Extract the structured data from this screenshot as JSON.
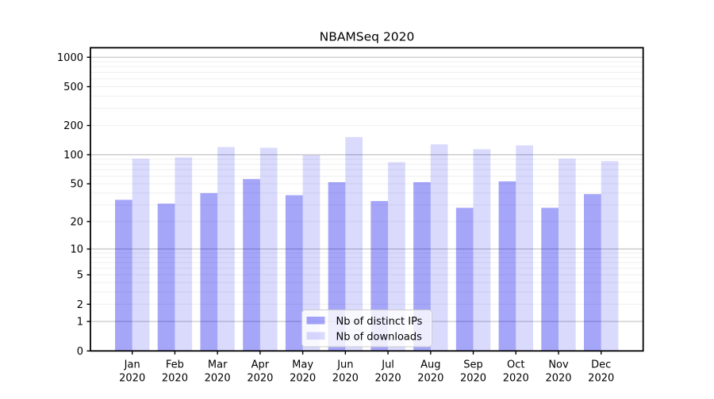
{
  "figure": {
    "background": "#ffffff"
  },
  "chart_data": {
    "type": "bar",
    "title": "NBAMSeq 2020",
    "yscale": "log1p",
    "ylim": [
      0,
      1257
    ],
    "grid": true,
    "categories": [
      "Jan 2020",
      "Feb 2020",
      "Mar 2020",
      "Apr 2020",
      "May 2020",
      "Jun 2020",
      "Jul 2020",
      "Aug 2020",
      "Sep 2020",
      "Oct 2020",
      "Nov 2020",
      "Dec 2020"
    ],
    "x_labels": [
      {
        "line1": "Jan",
        "line2": "2020"
      },
      {
        "line1": "Feb",
        "line2": "2020"
      },
      {
        "line1": "Mar",
        "line2": "2020"
      },
      {
        "line1": "Apr",
        "line2": "2020"
      },
      {
        "line1": "May",
        "line2": "2020"
      },
      {
        "line1": "Jun",
        "line2": "2020"
      },
      {
        "line1": "Jul",
        "line2": "2020"
      },
      {
        "line1": "Aug",
        "line2": "2020"
      },
      {
        "line1": "Sep",
        "line2": "2020"
      },
      {
        "line1": "Oct",
        "line2": "2020"
      },
      {
        "line1": "Nov",
        "line2": "2020"
      },
      {
        "line1": "Dec",
        "line2": "2020"
      }
    ],
    "series": [
      {
        "name": "Nb of distinct IPs",
        "fill": "rgba(0,0,238,0.35)",
        "approx_hex": "#a9a9f8",
        "values": [
          34,
          31,
          40,
          56,
          38,
          52,
          33,
          52,
          28,
          53,
          28,
          39
        ]
      },
      {
        "name": "Nb of downloads",
        "fill": "rgba(0,0,238,0.145)",
        "approx_hex": "#dcdcf9",
        "values": [
          91,
          94,
          120,
          118,
          99,
          152,
          84,
          128,
          114,
          125,
          91,
          86
        ]
      }
    ],
    "ytick_values": [
      0,
      1,
      2,
      5,
      10,
      20,
      50,
      100,
      200,
      500,
      1000
    ],
    "ytick_labels": [
      "0",
      "1",
      "2",
      "5",
      "10",
      "20",
      "50",
      "100",
      "200",
      "500",
      "1000"
    ],
    "major_grid_values": [
      1,
      10,
      100,
      1000
    ],
    "minor_grid_values": [
      2,
      3,
      4,
      5,
      6,
      7,
      8,
      9,
      20,
      30,
      40,
      50,
      60,
      70,
      80,
      90,
      200,
      300,
      400,
      500,
      600,
      700,
      800,
      900
    ],
    "legend": {
      "position": "lower-center"
    },
    "colors": {
      "major_grid": "#c3c3c3",
      "minor_grid": "#efefef",
      "spine": "#000000",
      "tick": "#000000",
      "legend_border": "#cccccc",
      "legend_background": "rgba(255,255,255,0.8)"
    }
  }
}
